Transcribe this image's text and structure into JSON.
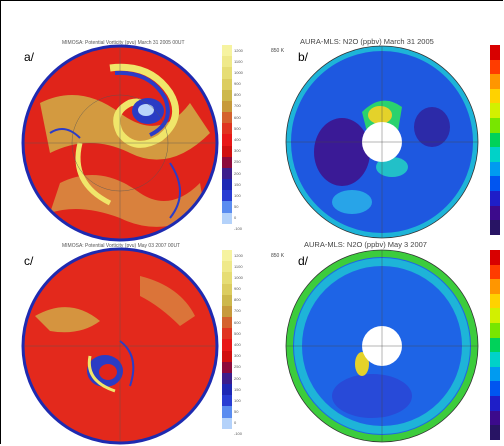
{
  "figure": {
    "panels": [
      {
        "id": "a",
        "letter": "a/",
        "title": "MIMOSA: Potential Vorticity (pvu) March 31 2005 00UT",
        "level": ""
      },
      {
        "id": "b",
        "letter": "b/",
        "title": "AURA-MLS: N2O (ppbv) March 31 2005",
        "level": "850 K"
      },
      {
        "id": "c",
        "letter": "c/",
        "title": "MIMOSA: Potential Vorticity (pvu) May 03 2007 00UT",
        "level": ""
      },
      {
        "id": "d",
        "letter": "d/",
        "title": "AURA-MLS: N2O (ppbv) May 3 2007",
        "level": "850 K"
      }
    ],
    "pv_colorbar": {
      "ticks": [
        "1200",
        "1100",
        "1000",
        "900",
        "800",
        "700",
        "600",
        "500",
        "400",
        "300",
        "250",
        "200",
        "150",
        "100",
        "50",
        "0",
        "-100"
      ],
      "colors": [
        "#f6f3a0",
        "#efe98a",
        "#e6dd74",
        "#dccd60",
        "#cdb84c",
        "#c79a3c",
        "#d4622e",
        "#e03420",
        "#e81818",
        "#d01010",
        "#8c0a3c",
        "#3c1e8c",
        "#1e28b4",
        "#283cd2",
        "#5a8cf0",
        "#b4d2fa",
        "#ffffff"
      ]
    },
    "n2o_colorbar": {
      "colors": [
        "#d80000",
        "#ff3c00",
        "#ff9600",
        "#ffd200",
        "#d2f000",
        "#78e600",
        "#00d25a",
        "#00d2c8",
        "#009bf0",
        "#0055f0",
        "#1e1ec8",
        "#3c0a8c",
        "#281464"
      ]
    }
  }
}
